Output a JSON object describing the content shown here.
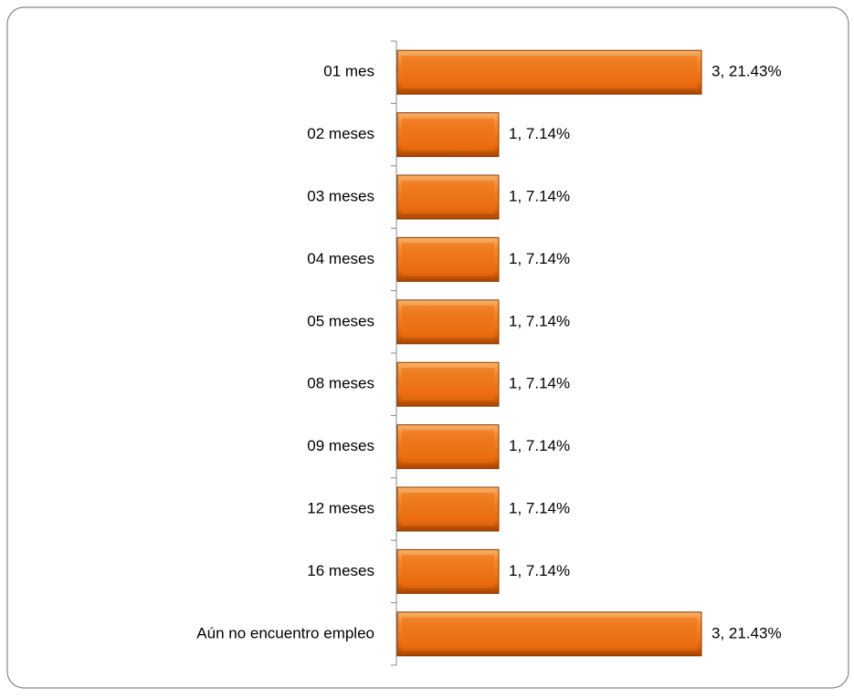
{
  "chart_data": {
    "type": "bar",
    "orientation": "horizontal",
    "categories": [
      "01 mes",
      "02 meses",
      "03 meses",
      "04 meses",
      "05 meses",
      "08 meses",
      "09 meses",
      "12 meses",
      "16 meses",
      "Aún no encuentro empleo"
    ],
    "values": [
      3,
      1,
      1,
      1,
      1,
      1,
      1,
      1,
      1,
      3
    ],
    "value_labels": [
      "3, 21.43%",
      "1, 7.14%",
      "1, 7.14%",
      "1, 7.14%",
      "1, 7.14%",
      "1, 7.14%",
      "1, 7.14%",
      "1, 7.14%",
      "1, 7.14%",
      "3, 21.43%"
    ],
    "color": "#ed7014"
  }
}
